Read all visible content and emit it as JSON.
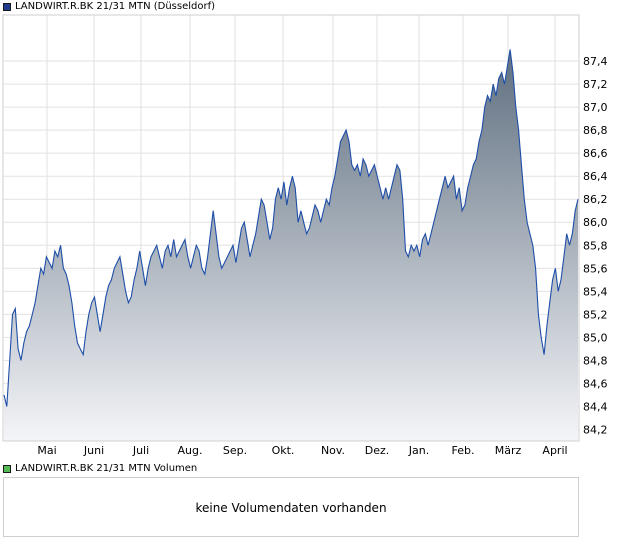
{
  "chart_data": [
    {
      "type": "area",
      "title": "LANDWIRT.R.BK 21/31 MTN (Düsseldorf)",
      "legend_color": "#1e3c8c",
      "ylim": [
        84.1,
        87.8
      ],
      "yticks": [
        "84,2",
        "84,4",
        "84,6",
        "84,8",
        "85,0",
        "85,2",
        "85,4",
        "85,6",
        "85,8",
        "86,0",
        "86,2",
        "86,4",
        "86,6",
        "86,8",
        "87,0",
        "87,2",
        "87,4"
      ],
      "xlabels": [
        "Mai",
        "Juni",
        "Juli",
        "Aug.",
        "Sep.",
        "Okt.",
        "Nov.",
        "Dez.",
        "Jan.",
        "Feb.",
        "März",
        "April"
      ],
      "line_color": "#1e4ea8",
      "fill_top_color": "#5f6f80",
      "fill_bottom_color": "#f4f5f8",
      "grid": true,
      "series": [
        {
          "values": [
            84.5,
            84.4,
            84.8,
            85.2,
            85.25,
            84.9,
            84.8,
            84.95,
            85.05,
            85.1,
            85.2,
            85.3,
            85.45,
            85.6,
            85.55,
            85.7,
            85.65,
            85.6,
            85.75,
            85.7,
            85.8,
            85.6,
            85.55,
            85.45,
            85.3,
            85.1,
            84.95,
            84.9,
            84.85,
            85.05,
            85.2,
            85.3,
            85.35,
            85.2,
            85.05,
            85.2,
            85.35,
            85.45,
            85.5,
            85.6,
            85.65,
            85.7,
            85.55,
            85.4,
            85.3,
            85.35,
            85.5,
            85.6,
            85.75,
            85.6,
            85.45,
            85.6,
            85.7,
            85.75,
            85.8,
            85.7,
            85.6,
            85.75,
            85.8,
            85.7,
            85.85,
            85.7,
            85.75,
            85.8,
            85.85,
            85.7,
            85.6,
            85.7,
            85.8,
            85.75,
            85.6,
            85.55,
            85.7,
            85.9,
            86.1,
            85.9,
            85.7,
            85.6,
            85.65,
            85.7,
            85.75,
            85.8,
            85.65,
            85.8,
            85.95,
            86.0,
            85.85,
            85.7,
            85.8,
            85.9,
            86.05,
            86.2,
            86.15,
            86.0,
            85.85,
            85.95,
            86.2,
            86.3,
            86.2,
            86.35,
            86.15,
            86.3,
            86.4,
            86.3,
            86.0,
            86.1,
            86.0,
            85.9,
            85.95,
            86.05,
            86.15,
            86.1,
            86.0,
            86.1,
            86.2,
            86.15,
            86.3,
            86.4,
            86.55,
            86.7,
            86.75,
            86.8,
            86.7,
            86.5,
            86.45,
            86.5,
            86.4,
            86.55,
            86.5,
            86.4,
            86.45,
            86.5,
            86.4,
            86.3,
            86.2,
            86.3,
            86.2,
            86.3,
            86.4,
            86.5,
            86.45,
            86.2,
            85.75,
            85.7,
            85.8,
            85.75,
            85.8,
            85.7,
            85.85,
            85.9,
            85.8,
            85.9,
            86.0,
            86.1,
            86.2,
            86.3,
            86.4,
            86.3,
            86.35,
            86.4,
            86.2,
            86.3,
            86.1,
            86.15,
            86.3,
            86.4,
            86.5,
            86.55,
            86.7,
            86.8,
            87.0,
            87.1,
            87.05,
            87.2,
            87.1,
            87.25,
            87.3,
            87.2,
            87.35,
            87.5,
            87.3,
            87.0,
            86.8,
            86.5,
            86.2,
            86.0,
            85.9,
            85.8,
            85.6,
            85.2,
            85.0,
            84.85,
            85.1,
            85.3,
            85.5,
            85.6,
            85.4,
            85.5,
            85.7,
            85.9,
            85.8,
            85.9,
            86.1,
            86.2
          ]
        }
      ]
    },
    {
      "type": "bar",
      "title": "LANDWIRT.R.BK 21/31 MTN Volumen",
      "legend_color": "#55bb55",
      "message": "keine Volumendaten vorhanden",
      "series": []
    }
  ]
}
